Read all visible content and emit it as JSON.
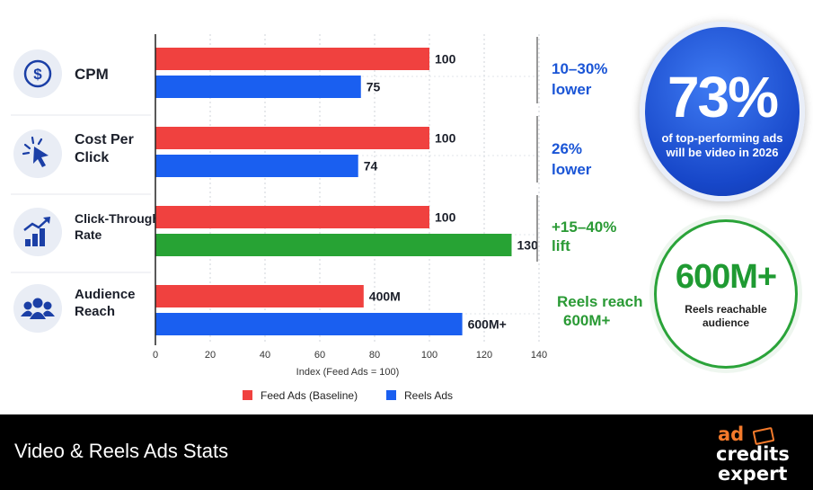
{
  "chart_data": {
    "type": "bar",
    "orientation": "horizontal",
    "categories": [
      "CPM",
      "Cost Per Click",
      "Click-Through Rate",
      "Audience Reach"
    ],
    "category_icons": [
      "dollar-icon",
      "cursor-click-icon",
      "growth-chart-icon",
      "people-icon"
    ],
    "bars": [
      [
        {
          "series": "Feed Ads (Baseline)",
          "value": 100,
          "label": "100",
          "color": "#f0413f"
        },
        {
          "series": "Reels Ads",
          "value": 75,
          "label": "75",
          "color": "#1a5ff0"
        }
      ],
      [
        {
          "series": "Feed Ads (Baseline)",
          "value": 100,
          "label": "100",
          "color": "#f0413f"
        },
        {
          "series": "Reels Ads",
          "value": 74,
          "label": "74",
          "color": "#1a5ff0"
        }
      ],
      [
        {
          "series": "Feed Ads (Baseline)",
          "value": 100,
          "label": "100",
          "color": "#f0413f"
        },
        {
          "series": "Reels Ads",
          "value": 130,
          "label": "130",
          "color": "#27a334"
        }
      ],
      [
        {
          "series": "Feed Ads (Baseline)",
          "value": 76,
          "label": "400M",
          "color": "#f0413f"
        },
        {
          "series": "Reels Ads",
          "value": 112,
          "label": "600M+",
          "color": "#1a5ff0"
        }
      ]
    ],
    "annotations": [
      {
        "lines": [
          "10–30%",
          "lower"
        ],
        "color": "#1a55d6"
      },
      {
        "lines": [
          "26%",
          "lower"
        ],
        "color": "#1a55d6"
      },
      {
        "lines": [
          "+15–40%",
          "lift"
        ],
        "color": "#2a9a35"
      },
      {
        "lines": [
          "Reels reach",
          "600M+"
        ],
        "color": "#2a9a35"
      }
    ],
    "xlabel": "Index (Feed Ads = 100)",
    "xlim": [
      0,
      140
    ],
    "xticks": [
      0,
      20,
      40,
      60,
      80,
      100,
      120,
      140
    ],
    "grid": true,
    "legend": {
      "placement": "bottom",
      "entries": [
        {
          "name": "Feed Ads (Baseline)",
          "color": "#f0413f"
        },
        {
          "name": "Reels Ads",
          "color": "#1a5ff0"
        }
      ]
    }
  },
  "stats": {
    "video_share": {
      "value": "73%",
      "caption": "of top-performing ads will be video in 2026"
    },
    "reach": {
      "value": "600M+",
      "caption": "Reels reachable audience"
    }
  },
  "footer": {
    "title": "Video & Reels Ads Stats",
    "logo": {
      "line1": "ad",
      "line2": "credits",
      "line3": "expert"
    }
  },
  "colors": {
    "feed": "#f0413f",
    "reels": "#1a5ff0",
    "lift": "#27a334",
    "icon_bg": "#e9edf5",
    "icon_fg": "#1b3fa6"
  }
}
